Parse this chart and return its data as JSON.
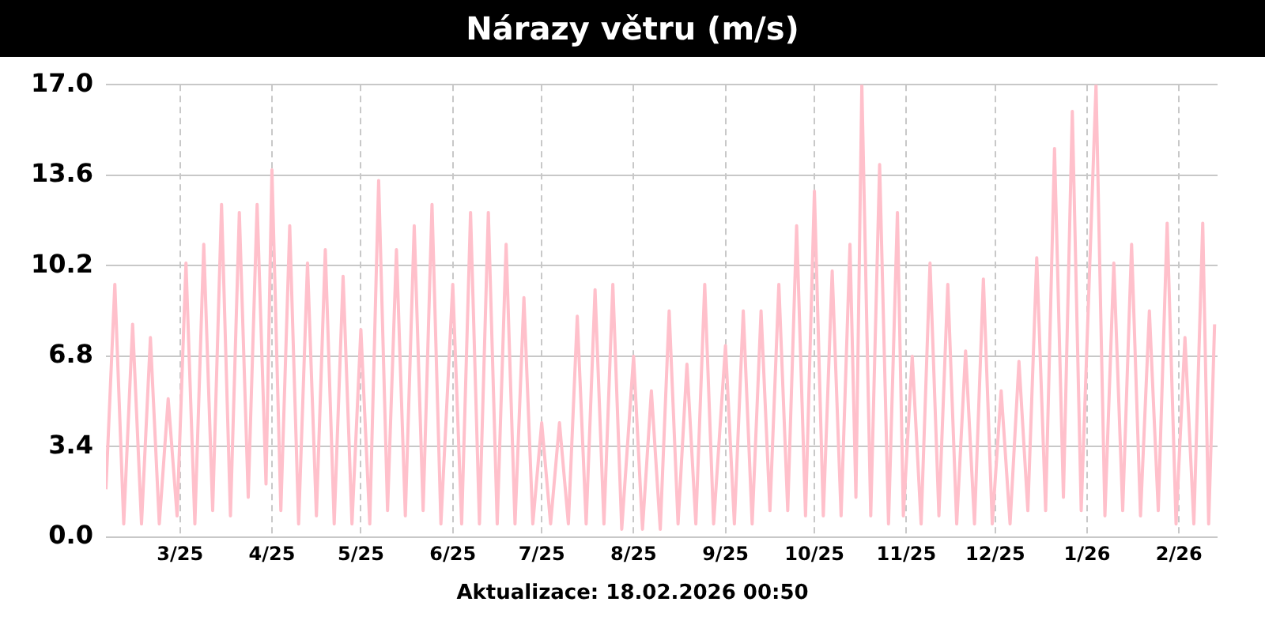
{
  "chart_data": {
    "type": "line",
    "title": "Nárazy větru (m/s)",
    "annotations": [
      "Aktualizace: 18.02.2026 00:50"
    ],
    "x": [
      "2025-02-04",
      "2025-02-07",
      "2025-02-10",
      "2025-02-13",
      "2025-02-16",
      "2025-02-19",
      "2025-02-22",
      "2025-02-25",
      "2025-02-28",
      "2025-03-03",
      "2025-03-06",
      "2025-03-09",
      "2025-03-12",
      "2025-03-15",
      "2025-03-18",
      "2025-03-21",
      "2025-03-24",
      "2025-03-27",
      "2025-03-30",
      "2025-04-01",
      "2025-04-04",
      "2025-04-07",
      "2025-04-10",
      "2025-04-13",
      "2025-04-16",
      "2025-04-19",
      "2025-04-22",
      "2025-04-25",
      "2025-04-28",
      "2025-05-01",
      "2025-05-04",
      "2025-05-07",
      "2025-05-10",
      "2025-05-13",
      "2025-05-16",
      "2025-05-19",
      "2025-05-22",
      "2025-05-25",
      "2025-05-28",
      "2025-06-01",
      "2025-06-04",
      "2025-06-07",
      "2025-06-10",
      "2025-06-13",
      "2025-06-16",
      "2025-06-19",
      "2025-06-22",
      "2025-06-25",
      "2025-06-28",
      "2025-07-01",
      "2025-07-04",
      "2025-07-07",
      "2025-07-10",
      "2025-07-13",
      "2025-07-16",
      "2025-07-19",
      "2025-07-22",
      "2025-07-25",
      "2025-07-28",
      "2025-08-01",
      "2025-08-04",
      "2025-08-07",
      "2025-08-10",
      "2025-08-13",
      "2025-08-16",
      "2025-08-19",
      "2025-08-22",
      "2025-08-25",
      "2025-08-28",
      "2025-09-01",
      "2025-09-04",
      "2025-09-07",
      "2025-09-10",
      "2025-09-13",
      "2025-09-16",
      "2025-09-19",
      "2025-09-22",
      "2025-09-25",
      "2025-09-28",
      "2025-10-01",
      "2025-10-04",
      "2025-10-07",
      "2025-10-10",
      "2025-10-13",
      "2025-10-15",
      "2025-10-17",
      "2025-10-20",
      "2025-10-23",
      "2025-10-26",
      "2025-10-29",
      "2025-10-31",
      "2025-11-03",
      "2025-11-06",
      "2025-11-09",
      "2025-11-12",
      "2025-11-15",
      "2025-11-18",
      "2025-11-21",
      "2025-11-24",
      "2025-11-27",
      "2025-11-30",
      "2025-12-03",
      "2025-12-06",
      "2025-12-09",
      "2025-12-12",
      "2025-12-15",
      "2025-12-18",
      "2025-12-21",
      "2025-12-24",
      "2025-12-27",
      "2025-12-30",
      "2026-01-04",
      "2026-01-07",
      "2026-01-10",
      "2026-01-13",
      "2026-01-16",
      "2026-01-19",
      "2026-01-22",
      "2026-01-25",
      "2026-01-28",
      "2026-01-31",
      "2026-02-03",
      "2026-02-06",
      "2026-02-09",
      "2026-02-11",
      "2026-02-13"
    ],
    "series": [
      {
        "color": "#ffc0cb",
        "values": [
          1.8,
          9.5,
          0.5,
          8.0,
          0.5,
          7.5,
          0.5,
          5.2,
          0.8,
          10.3,
          0.5,
          11.0,
          1.0,
          12.5,
          0.8,
          12.2,
          1.5,
          12.5,
          2.0,
          13.8,
          1.0,
          11.7,
          0.5,
          10.3,
          0.8,
          10.8,
          0.5,
          9.8,
          0.5,
          7.8,
          0.5,
          13.4,
          1.0,
          10.8,
          0.8,
          11.7,
          1.0,
          12.5,
          0.5,
          9.5,
          0.5,
          12.2,
          0.5,
          12.2,
          0.5,
          11.0,
          0.5,
          9.0,
          0.5,
          4.3,
          0.5,
          4.3,
          0.5,
          8.3,
          0.5,
          9.3,
          0.5,
          9.5,
          0.3,
          6.8,
          0.3,
          5.5,
          0.3,
          8.5,
          0.5,
          6.5,
          0.5,
          9.5,
          0.5,
          7.2,
          0.5,
          8.5,
          0.5,
          8.5,
          1.0,
          9.5,
          1.0,
          11.7,
          0.8,
          13.0,
          0.8,
          10.0,
          0.8,
          11.0,
          1.5,
          17.0,
          0.8,
          14.0,
          0.5,
          12.2,
          0.8,
          6.8,
          0.5,
          10.3,
          0.8,
          9.5,
          0.5,
          7.0,
          0.5,
          9.7,
          0.5,
          5.5,
          0.5,
          6.6,
          1.0,
          10.5,
          1.0,
          14.6,
          1.5,
          16.0,
          1.0,
          17.0,
          0.8,
          10.3,
          1.0,
          11.0,
          0.8,
          8.5,
          1.0,
          11.8,
          0.5,
          7.5,
          0.5,
          11.8,
          0.5,
          8.0
        ]
      }
    ],
    "xlim": [
      "2025-02-04",
      "2026-02-14"
    ],
    "xticks": [
      {
        "value": "2025-03-01",
        "label": "3/25"
      },
      {
        "value": "2025-04-01",
        "label": "4/25"
      },
      {
        "value": "2025-05-01",
        "label": "5/25"
      },
      {
        "value": "2025-06-01",
        "label": "6/25"
      },
      {
        "value": "2025-07-01",
        "label": "7/25"
      },
      {
        "value": "2025-08-01",
        "label": "8/25"
      },
      {
        "value": "2025-09-01",
        "label": "9/25"
      },
      {
        "value": "2025-10-01",
        "label": "10/25"
      },
      {
        "value": "2025-11-01",
        "label": "11/25"
      },
      {
        "value": "2025-12-01",
        "label": "12/25"
      },
      {
        "value": "2026-01-01",
        "label": "1/26"
      },
      {
        "value": "2026-02-01",
        "label": "2/26"
      }
    ],
    "ylim": [
      0,
      17
    ],
    "yticks": [
      {
        "value": 0,
        "label": "0.0"
      },
      3.4,
      6.8,
      10.2,
      13.6,
      {
        "value": 17,
        "label": "17.0"
      }
    ],
    "grid": true,
    "legend": false,
    "marker": "none",
    "line_style": "solid"
  }
}
